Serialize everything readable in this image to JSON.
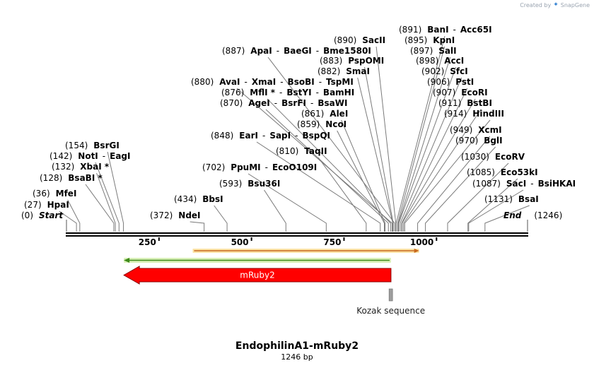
{
  "watermark": {
    "text": "Created by",
    "brand": "SnapGene"
  },
  "sequence": {
    "name": "EndophilinA1-mRuby2",
    "length_label": "1246 bp",
    "length": 1246
  },
  "ruler": {
    "ticks": [
      250,
      500,
      750,
      1000
    ]
  },
  "sites": [
    {
      "pos": 0,
      "label_pos": "(0)",
      "names": [
        "Start"
      ],
      "italic": true
    },
    {
      "pos": 27,
      "label_pos": "(27)",
      "names": [
        "HpaI"
      ]
    },
    {
      "pos": 36,
      "label_pos": "(36)",
      "names": [
        "MfeI"
      ]
    },
    {
      "pos": 128,
      "label_pos": "(128)",
      "names": [
        "BsaBI *"
      ]
    },
    {
      "pos": 132,
      "label_pos": "(132)",
      "names": [
        "XbaI *"
      ]
    },
    {
      "pos": 142,
      "label_pos": "(142)",
      "names": [
        "NotI",
        "EagI"
      ]
    },
    {
      "pos": 154,
      "label_pos": "(154)",
      "names": [
        "BsrGI"
      ]
    },
    {
      "pos": 372,
      "label_pos": "(372)",
      "names": [
        "NdeI"
      ]
    },
    {
      "pos": 434,
      "label_pos": "(434)",
      "names": [
        "BbsI"
      ]
    },
    {
      "pos": 593,
      "label_pos": "(593)",
      "names": [
        "Bsu36I"
      ]
    },
    {
      "pos": 702,
      "label_pos": "(702)",
      "names": [
        "PpuMI",
        "EcoO109I"
      ]
    },
    {
      "pos": 810,
      "label_pos": "(810)",
      "names": [
        "TaqII"
      ]
    },
    {
      "pos": 848,
      "label_pos": "(848)",
      "names": [
        "EarI",
        "SapI",
        "BspQI"
      ]
    },
    {
      "pos": 859,
      "label_pos": "(859)",
      "names": [
        "NcoI"
      ]
    },
    {
      "pos": 861,
      "label_pos": "(861)",
      "names": [
        "AleI"
      ]
    },
    {
      "pos": 870,
      "label_pos": "(870)",
      "names": [
        "AgeI",
        "BsrFI",
        "BsaWI"
      ]
    },
    {
      "pos": 876,
      "label_pos": "(876)",
      "names": [
        "MflI *",
        "BstYI",
        "BamHI"
      ]
    },
    {
      "pos": 880,
      "label_pos": "(880)",
      "names": [
        "AvaI",
        "XmaI",
        "BsoBI",
        "TspMI"
      ]
    },
    {
      "pos": 882,
      "label_pos": "(882)",
      "names": [
        "SmaI"
      ]
    },
    {
      "pos": 883,
      "label_pos": "(883)",
      "names": [
        "PspOMI"
      ]
    },
    {
      "pos": 887,
      "label_pos": "(887)",
      "names": [
        "ApaI",
        "BaeGI",
        "Bme1580I"
      ]
    },
    {
      "pos": 890,
      "label_pos": "(890)",
      "names": [
        "SacII"
      ]
    },
    {
      "pos": 891,
      "label_pos": "(891)",
      "names": [
        "BanI",
        "Acc65I"
      ]
    },
    {
      "pos": 895,
      "label_pos": "(895)",
      "names": [
        "KpnI"
      ]
    },
    {
      "pos": 897,
      "label_pos": "(897)",
      "names": [
        "SalI"
      ]
    },
    {
      "pos": 898,
      "label_pos": "(898)",
      "names": [
        "AccI"
      ]
    },
    {
      "pos": 902,
      "label_pos": "(902)",
      "names": [
        "SfcI"
      ]
    },
    {
      "pos": 906,
      "label_pos": "(906)",
      "names": [
        "PstI"
      ]
    },
    {
      "pos": 907,
      "label_pos": "(907)",
      "names": [
        "EcoRI"
      ]
    },
    {
      "pos": 911,
      "label_pos": "(911)",
      "names": [
        "BstBI"
      ]
    },
    {
      "pos": 914,
      "label_pos": "(914)",
      "names": [
        "HindIII"
      ]
    },
    {
      "pos": 949,
      "label_pos": "(949)",
      "names": [
        "XcmI"
      ]
    },
    {
      "pos": 970,
      "label_pos": "(970)",
      "names": [
        "BglI"
      ]
    },
    {
      "pos": 1030,
      "label_pos": "(1030)",
      "names": [
        "EcoRV"
      ]
    },
    {
      "pos": 1085,
      "label_pos": "(1085)",
      "names": [
        "Eco53kI"
      ]
    },
    {
      "pos": 1087,
      "label_pos": "(1087)",
      "names": [
        "SacI",
        "BsiHKAI"
      ]
    },
    {
      "pos": 1131,
      "label_pos": "(1131)",
      "names": [
        "BsaI"
      ]
    },
    {
      "pos": 1246,
      "label_pos": "(1246)",
      "names": [
        "End"
      ],
      "italic": true
    }
  ],
  "features": [
    {
      "name": "orange-bar",
      "start": 341,
      "end": 953,
      "color": "#f4a63a",
      "direction": "forward"
    },
    {
      "name": "green-bar",
      "start": 155,
      "end": 877,
      "color": "#5cb82e",
      "direction": "reverse"
    },
    {
      "name": "mRuby2",
      "start": 155,
      "end": 877,
      "color": "#ff0000",
      "direction": "reverse",
      "label": "mRuby2"
    },
    {
      "name": "kozak",
      "start": 872,
      "end": 881,
      "color": "#9e9e9e",
      "direction": "none",
      "label": "Kozak sequence"
    }
  ],
  "colors": {
    "backbone": "#000000",
    "connector": "#7a7a7a"
  }
}
